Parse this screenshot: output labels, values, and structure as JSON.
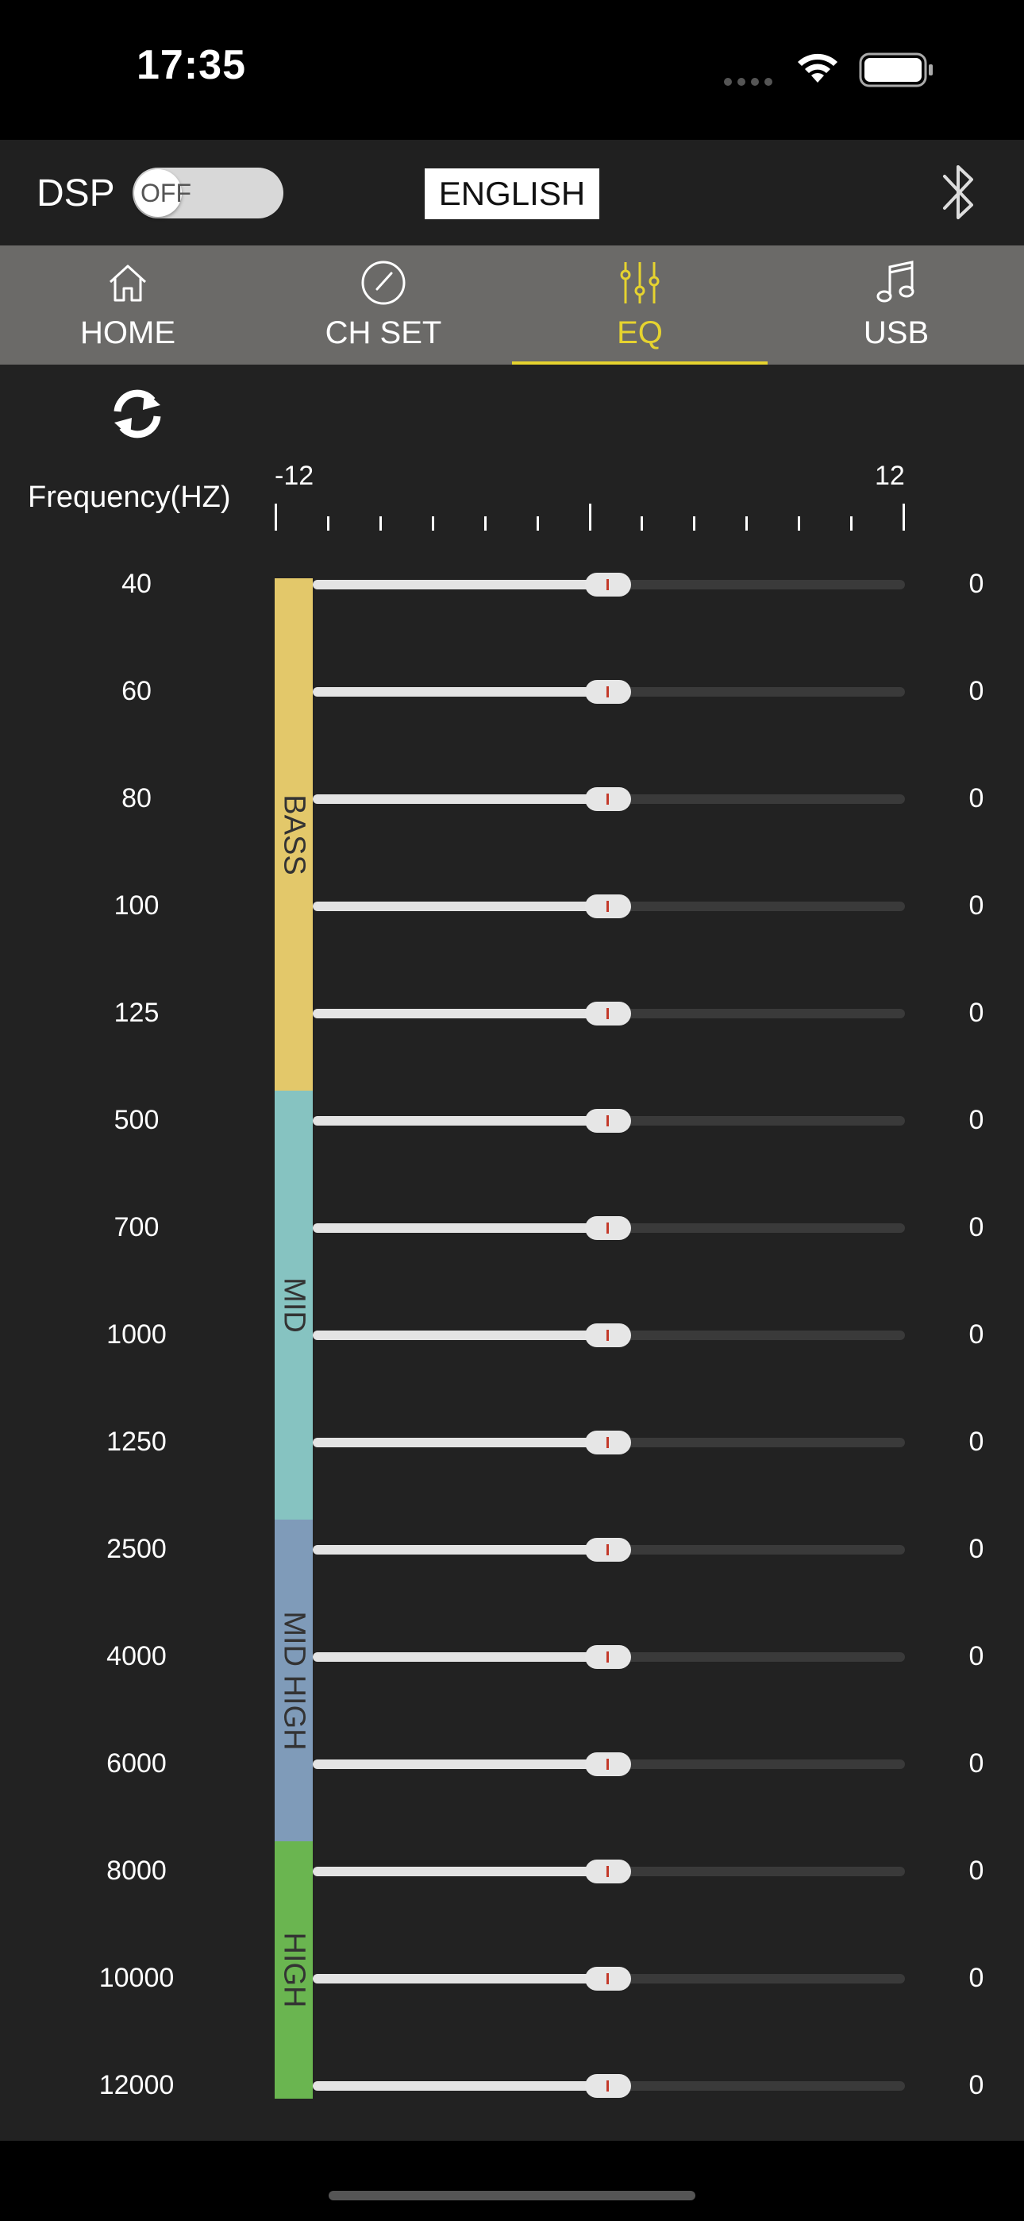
{
  "status": {
    "time": "17:35"
  },
  "header": {
    "dsp_label": "DSP",
    "toggle_text": "OFF",
    "language": "ENGLISH"
  },
  "tabs": [
    {
      "label": "HOME",
      "icon": "home-icon"
    },
    {
      "label": "CH SET",
      "icon": "gauge-icon"
    },
    {
      "label": "EQ",
      "icon": "equalizer-icon",
      "active": true
    },
    {
      "label": "USB",
      "icon": "music-note-icon"
    }
  ],
  "eq": {
    "frequency_header": "Frequency(HZ)",
    "scale_min": "-12",
    "scale_max": "12",
    "range": [
      -12,
      12
    ],
    "bands": [
      {
        "label": "BASS",
        "color": "#e3c86a",
        "rows": 5
      },
      {
        "label": "MID",
        "color": "#86c3c1",
        "rows": 4
      },
      {
        "label": "MID HIGH",
        "color": "#7f9bb9",
        "rows": 3
      },
      {
        "label": "HIGH",
        "color": "#6ab550",
        "rows": 3
      }
    ],
    "rows": [
      {
        "freq": "40",
        "gain": 0,
        "value": "0"
      },
      {
        "freq": "60",
        "gain": 0,
        "value": "0"
      },
      {
        "freq": "80",
        "gain": 0,
        "value": "0"
      },
      {
        "freq": "100",
        "gain": 0,
        "value": "0"
      },
      {
        "freq": "125",
        "gain": 0,
        "value": "0"
      },
      {
        "freq": "500",
        "gain": 0,
        "value": "0"
      },
      {
        "freq": "700",
        "gain": 0,
        "value": "0"
      },
      {
        "freq": "1000",
        "gain": 0,
        "value": "0"
      },
      {
        "freq": "1250",
        "gain": 0,
        "value": "0"
      },
      {
        "freq": "2500",
        "gain": 0,
        "value": "0"
      },
      {
        "freq": "4000",
        "gain": 0,
        "value": "0"
      },
      {
        "freq": "6000",
        "gain": 0,
        "value": "0"
      },
      {
        "freq": "8000",
        "gain": 0,
        "value": "0"
      },
      {
        "freq": "10000",
        "gain": 0,
        "value": "0"
      },
      {
        "freq": "12000",
        "gain": 0,
        "value": "0"
      }
    ]
  }
}
